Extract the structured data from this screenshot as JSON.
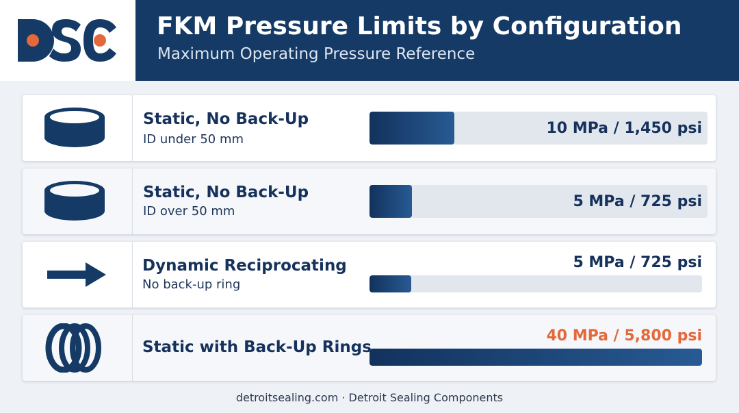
{
  "header": {
    "logo_text": "DSC",
    "title": "FKM Pressure Limits by Configuration",
    "subtitle": "Maximum Operating Pressure Reference"
  },
  "chart_data": {
    "type": "bar",
    "orientation": "horizontal",
    "title": "FKM Pressure Limits by Configuration",
    "subtitle": "Maximum Operating Pressure Reference",
    "xlim": [
      0,
      40
    ],
    "unit": "MPa",
    "rows": [
      {
        "label": "Static, No Back-Up",
        "sublabel": "ID under 50 mm",
        "icon": "seal-ring-icon",
        "value_mpa": 10,
        "value_psi": 1450,
        "value_label": "10 MPa / 1,450 psi",
        "highlight": false
      },
      {
        "label": "Static, No Back-Up",
        "sublabel": "ID over 50 mm",
        "icon": "seal-ring-icon",
        "value_mpa": 5,
        "value_psi": 725,
        "value_label": "5 MPa / 725 psi",
        "highlight": false
      },
      {
        "label": "Dynamic Reciprocating",
        "sublabel": "No back-up ring",
        "icon": "arrow-right-icon",
        "value_mpa": 5,
        "value_psi": 725,
        "value_label": "5 MPa / 725 psi",
        "highlight": false
      },
      {
        "label": "Static with Back-Up Rings",
        "sublabel": "",
        "icon": "backup-rings-icon",
        "value_mpa": 40,
        "value_psi": 5800,
        "value_label": "40 MPa / 5,800 psi",
        "highlight": true
      }
    ]
  },
  "colors": {
    "header_bg": "#153a66",
    "bar_dark": "#12325d",
    "bar_light": "#285a93",
    "track": "#e2e7ee",
    "accent": "#e3683a"
  },
  "footer": {
    "text": "detroitsealing.com · Detroit Sealing Components"
  }
}
